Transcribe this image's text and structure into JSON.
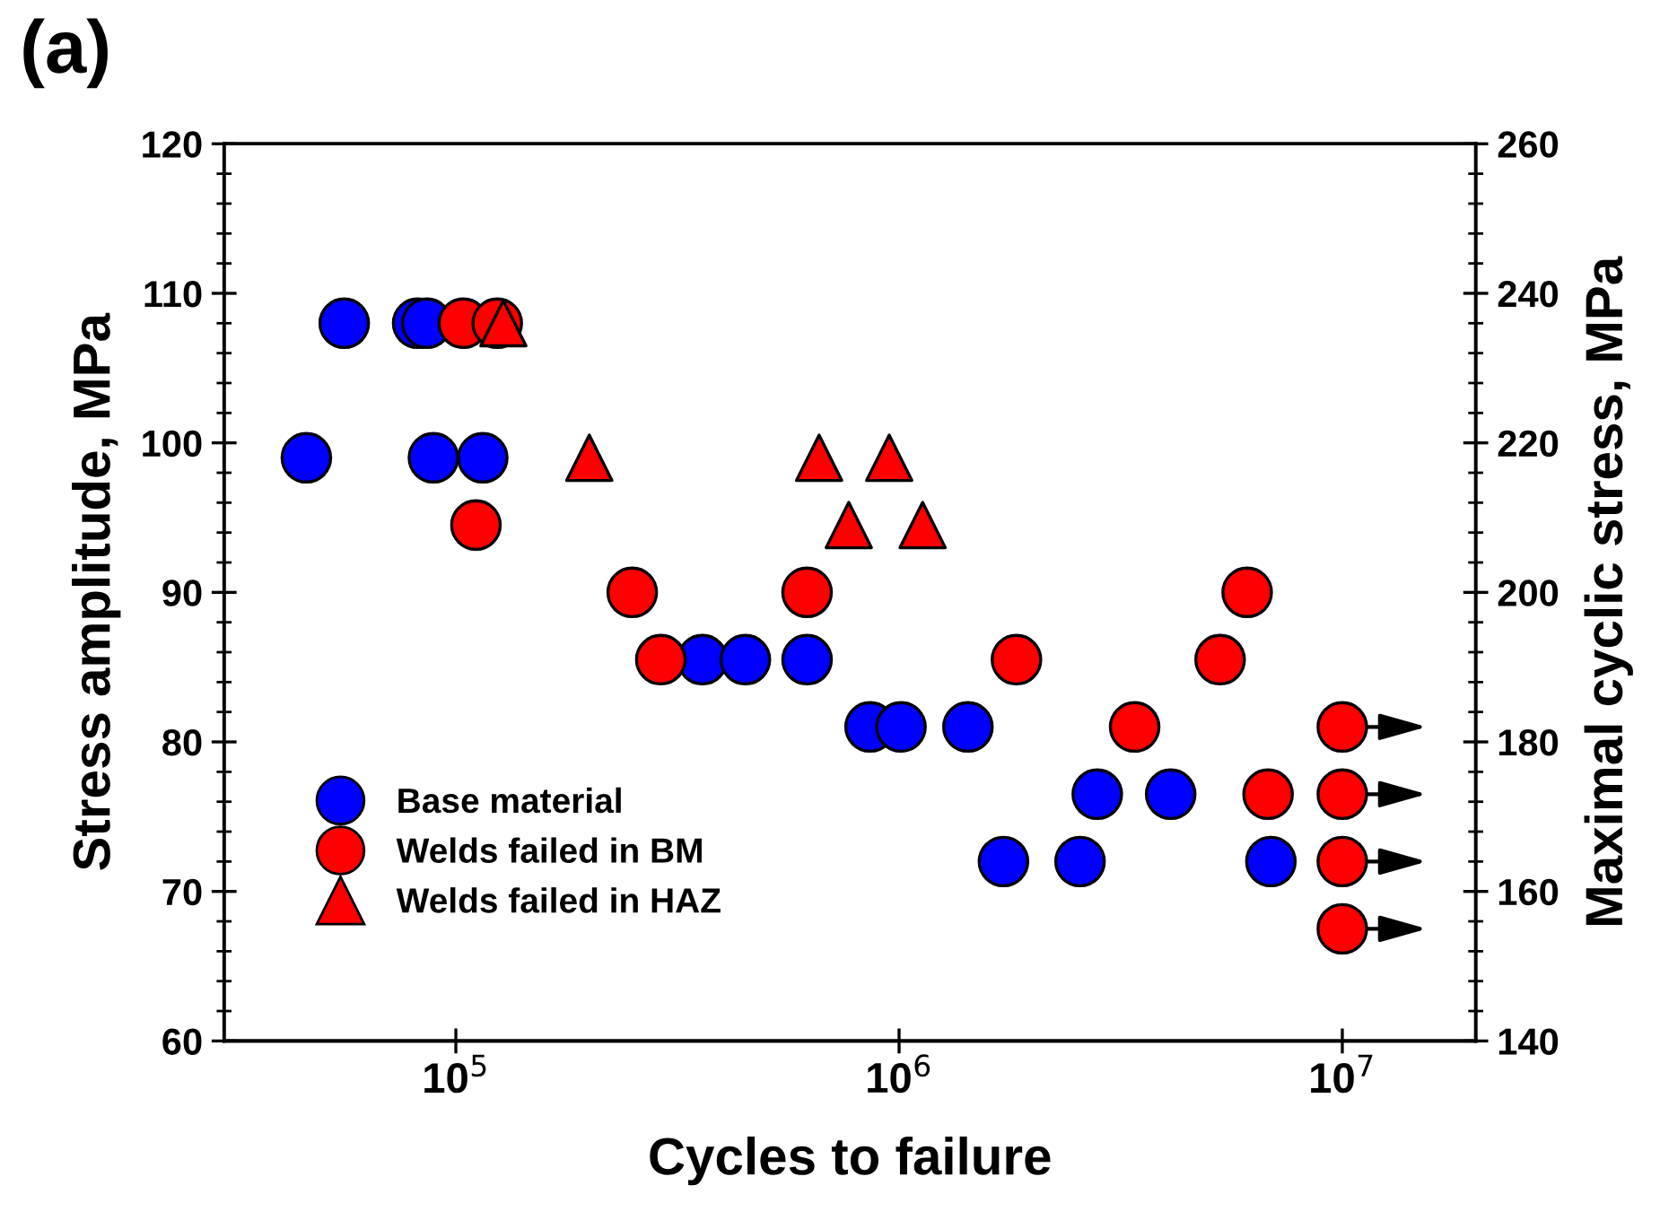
{
  "chart_data": {
    "type": "scatter",
    "title": "(a)",
    "xlabel": "Cycles to failure",
    "ylabel": "Stress amplitude, MPa",
    "y2label": "Maximal cyclic stress, MPa",
    "log": "x",
    "xlim": [
      30000,
      20000000
    ],
    "xticks": [
      {
        "value": 100000,
        "label": "10$^{5}$"
      },
      {
        "value": 1000000,
        "label": "10$^{6}$"
      },
      {
        "value": 10000000,
        "label": "10$^{7}$"
      }
    ],
    "ylim": [
      60,
      120
    ],
    "yticks": [
      60,
      70,
      80,
      90,
      100,
      110,
      120
    ],
    "y2lim": [
      140,
      260
    ],
    "y2ticks": [
      140,
      160,
      180,
      200,
      220,
      240,
      260
    ],
    "grid": false,
    "legend": "bottom left",
    "series": [
      {
        "name": "Base material",
        "color": "#0000ff",
        "marker": "circle",
        "x": [
          56000,
          82000,
          86000,
          46000,
          89000,
          115000,
          360000,
          450000,
          620000,
          860000,
          1010000,
          1430000,
          2800000,
          4100000,
          1720000,
          2560000,
          6900000
        ],
        "values": [
          108,
          108,
          108,
          99,
          99,
          99,
          85.5,
          85.5,
          85.5,
          81,
          81,
          81,
          76.5,
          76.5,
          72,
          72,
          72
        ]
      },
      {
        "name": "Welds failed in BM",
        "color": "#ff0000",
        "marker": "circle",
        "x": [
          104000,
          124000,
          111000,
          250000,
          620000,
          6100000,
          290000,
          1840000,
          5300000,
          3400000,
          10000000,
          6800000,
          10000000,
          10000000,
          10000000
        ],
        "values": [
          108,
          108,
          94.5,
          90,
          90,
          90,
          85.5,
          85.5,
          85.5,
          81,
          81,
          76.5,
          76.5,
          72,
          67.5
        ]
      },
      {
        "name": "Welds failed in HAZ",
        "color": "#ff0000",
        "marker": "triangle",
        "x": [
          128000,
          200000,
          660000,
          950000,
          770000,
          1130000
        ],
        "values": [
          108,
          99,
          99,
          99,
          94.5,
          94.5
        ]
      }
    ]
  }
}
